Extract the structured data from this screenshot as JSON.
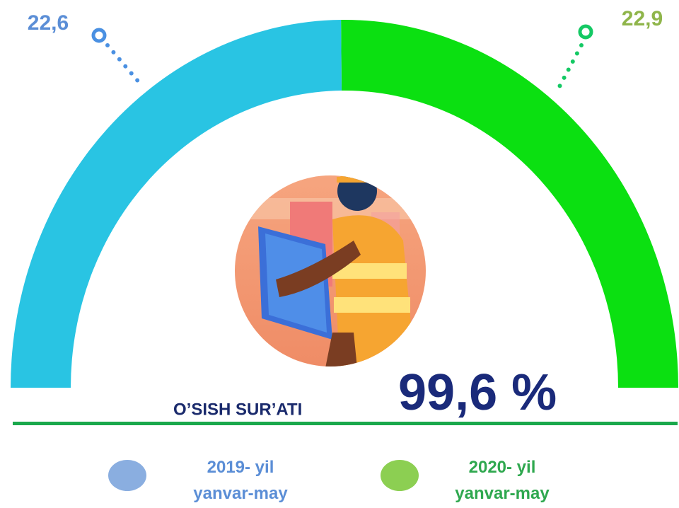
{
  "chart_data": {
    "type": "pie",
    "categories": [
      "2019- yil yanvar-may",
      "2020- yil yanvar-may"
    ],
    "values": [
      22.6,
      22.9
    ],
    "value_labels": [
      "22,6",
      "22,9"
    ],
    "colors": [
      "#29c4e3",
      "#0be011"
    ],
    "label_colors": [
      "#5b8ed6",
      "#8fb54a"
    ],
    "legend_colors": [
      "#8aaee0",
      "#8ccf52"
    ],
    "legend_text_colors": [
      "#5b8ed6",
      "#2fa84f"
    ],
    "annotation": "O’SISH SUR’ATI",
    "annotation_value": "99,6 %"
  }
}
